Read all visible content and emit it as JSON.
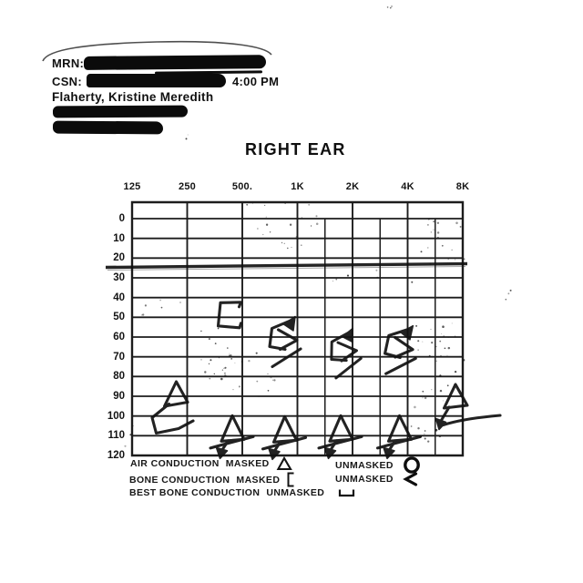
{
  "header": {
    "mrn_label": "MRN:",
    "csn_label": "CSN:",
    "time": "4:00 PM",
    "patient_name": "Flaherty, Kristine Meredith"
  },
  "title": "RIGHT EAR",
  "chart_data": {
    "type": "scatter",
    "title": "RIGHT EAR",
    "x_categories": [
      "125",
      "250",
      "500.",
      "1K",
      "2K",
      "4K",
      "8K"
    ],
    "y_ticks": [
      "0",
      "10",
      "20",
      "30",
      "40",
      "50",
      "60",
      "70",
      "80",
      "90",
      "100",
      "110",
      "120"
    ],
    "y_range": [
      -10,
      120
    ],
    "y_inverted": true,
    "grid": true,
    "reference_line_db": 25,
    "series": [
      {
        "name": "AIR CONDUCTION MASKED",
        "symbol": "triangle",
        "points": [
          {
            "freq": "250",
            "db": 90,
            "no_response": true
          },
          {
            "freq": "500",
            "db": 110,
            "no_response": true
          },
          {
            "freq": "1K",
            "db": 110,
            "no_response": true
          },
          {
            "freq": "2K",
            "db": 110,
            "no_response": true
          },
          {
            "freq": "4K",
            "db": 110,
            "no_response": true
          },
          {
            "freq": "8K",
            "db": 90,
            "no_response": true
          }
        ]
      },
      {
        "name": "BONE CONDUCTION MASKED",
        "symbol": "bracket",
        "points": [
          {
            "freq": "500",
            "db": 50,
            "no_response": false
          },
          {
            "freq": "1K",
            "db": 60,
            "no_response": true
          },
          {
            "freq": "2K",
            "db": 65,
            "no_response": true
          },
          {
            "freq": "4K",
            "db": 65,
            "no_response": true
          }
        ]
      }
    ]
  },
  "legend": {
    "rows": [
      {
        "name": "AIR CONDUCTION",
        "state": "MASKED",
        "symbol": "triangle",
        "state2": "UNMASKED",
        "symbol2": "circle"
      },
      {
        "name": "BONE CONDUCTION",
        "state": "MASKED",
        "symbol": "bracket",
        "state2": "UNMASKED",
        "symbol2": "chevron"
      },
      {
        "name": "BEST BONE CONDUCTION",
        "state": "UNMASKED",
        "symbol": "cup"
      }
    ]
  }
}
